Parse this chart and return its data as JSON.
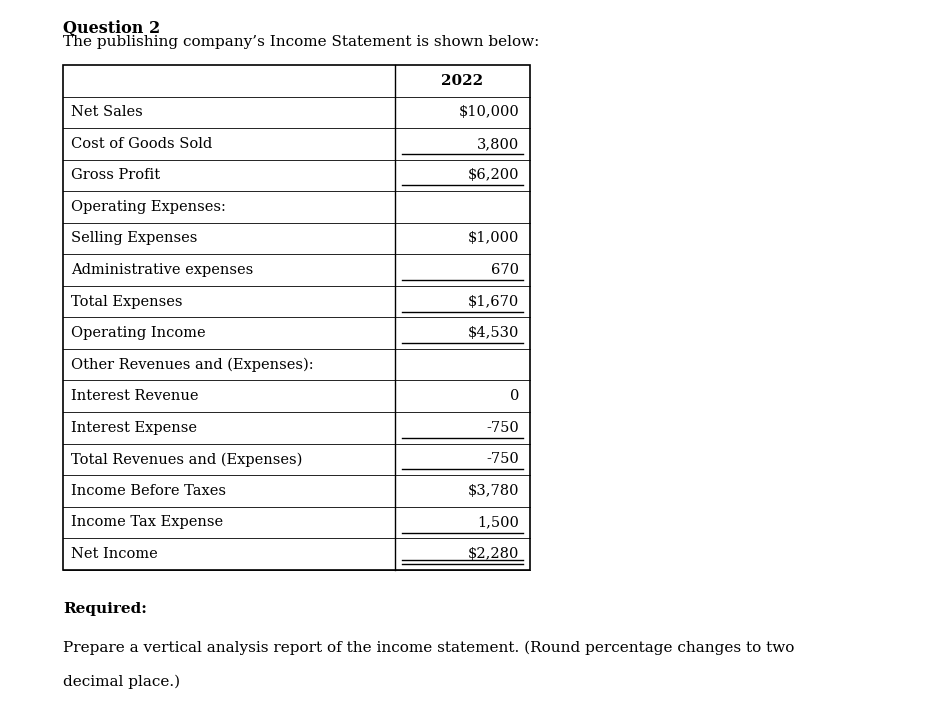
{
  "title": "Question 2",
  "subtitle": "The publishing company’s Income Statement is shown below:",
  "col_header": "2022",
  "rows": [
    {
      "label": "Net Sales",
      "value": "$10,000",
      "underline": false,
      "double_underline": false
    },
    {
      "label": "Cost of Goods Sold",
      "value": "3,800",
      "underline": true,
      "double_underline": false
    },
    {
      "label": "Gross Profit",
      "value": "$6,200",
      "underline": true,
      "double_underline": false
    },
    {
      "label": "Operating Expenses:",
      "value": "",
      "underline": false,
      "double_underline": false
    },
    {
      "label": "Selling Expenses",
      "value": "$1,000",
      "underline": false,
      "double_underline": false
    },
    {
      "label": "Administrative expenses",
      "value": "670",
      "underline": true,
      "double_underline": false
    },
    {
      "label": "Total Expenses",
      "value": "$1,670",
      "underline": true,
      "double_underline": false
    },
    {
      "label": "Operating Income",
      "value": "$4,530",
      "underline": true,
      "double_underline": false
    },
    {
      "label": "Other Revenues and (Expenses):",
      "value": "",
      "underline": false,
      "double_underline": false
    },
    {
      "label": "Interest Revenue",
      "value": "0",
      "underline": false,
      "double_underline": false
    },
    {
      "label": "Interest Expense",
      "value": "-750",
      "underline": true,
      "double_underline": false
    },
    {
      "label": "Total Revenues and (Expenses)",
      "value": "-750",
      "underline": true,
      "double_underline": false
    },
    {
      "label": "Income Before Taxes",
      "value": "$3,780",
      "underline": false,
      "double_underline": false
    },
    {
      "label": "Income Tax Expense",
      "value": "1,500",
      "underline": true,
      "double_underline": false
    },
    {
      "label": "Net Income",
      "value": "$2,280",
      "underline": false,
      "double_underline": true
    }
  ],
  "required_label": "Required:",
  "required_line1": "Prepare a vertical analysis report of the income statement. (Round percentage changes to two",
  "required_line2": "decimal place.)",
  "font_family": "DejaVu Serif",
  "bg_color": "#ffffff",
  "text_color": "#000000",
  "title_fontsize": 11.5,
  "subtitle_fontsize": 11,
  "header_fontsize": 11,
  "cell_fontsize": 10.5,
  "required_fontsize": 11
}
